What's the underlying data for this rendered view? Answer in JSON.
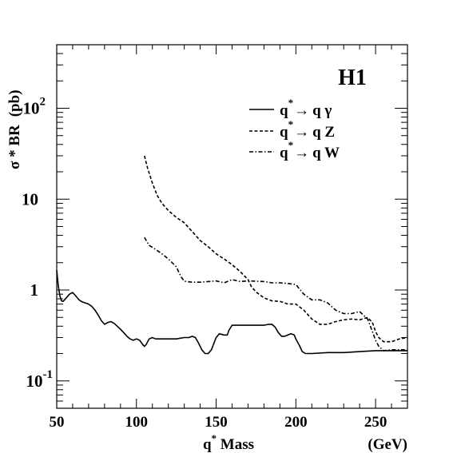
{
  "chart_data": {
    "type": "line",
    "experiment_label": "H1",
    "xlabel": {
      "prefix": "q",
      "sup": "*",
      "rest": " Mass"
    },
    "xunit": "(GeV)",
    "ylabel": {
      "main": "σ * BR",
      "unit": "(pb)"
    },
    "xlim": [
      50,
      270
    ],
    "ylim": [
      0.05,
      500
    ],
    "yscale": "log",
    "x_ticks": [
      {
        "value": 50,
        "label": "50"
      },
      {
        "value": 100,
        "label": "100"
      },
      {
        "value": 150,
        "label": "150"
      },
      {
        "value": 200,
        "label": "200"
      },
      {
        "value": 250,
        "label": "250"
      }
    ],
    "y_ticks": [
      {
        "value": 0.1,
        "base": "10",
        "exp": "-1"
      },
      {
        "value": 1,
        "base": "1",
        "exp": ""
      },
      {
        "value": 10,
        "base": "10",
        "exp": ""
      },
      {
        "value": 100,
        "base": "10",
        "exp": "2"
      }
    ],
    "legend_position": "top-right",
    "series": [
      {
        "name": "q* → q γ",
        "legend": {
          "q": "q",
          "sup": "*",
          "arrow": "→",
          "rest": "q γ"
        },
        "style": "solid",
        "x": [
          50,
          51,
          52,
          53,
          54,
          56,
          58,
          60,
          62,
          64,
          66,
          68,
          70,
          72,
          74,
          76,
          78,
          80,
          82,
          84,
          86,
          88,
          90,
          92,
          94,
          96,
          98,
          100,
          102,
          104,
          105,
          106,
          108,
          110,
          112,
          115,
          118,
          120,
          125,
          130,
          133,
          135,
          137,
          139,
          141,
          143,
          145,
          147,
          150,
          152,
          155,
          157,
          158,
          160,
          163,
          166,
          170,
          175,
          180,
          183,
          185,
          187,
          189,
          191,
          193,
          195,
          197,
          199,
          200,
          202,
          204,
          206,
          210,
          220,
          230,
          240,
          250,
          260,
          270
        ],
        "y": [
          1.65,
          1.1,
          0.86,
          0.76,
          0.75,
          0.82,
          0.9,
          0.94,
          0.86,
          0.78,
          0.74,
          0.72,
          0.7,
          0.66,
          0.6,
          0.53,
          0.46,
          0.42,
          0.44,
          0.45,
          0.43,
          0.4,
          0.37,
          0.34,
          0.31,
          0.29,
          0.28,
          0.29,
          0.28,
          0.25,
          0.24,
          0.25,
          0.29,
          0.3,
          0.29,
          0.29,
          0.29,
          0.29,
          0.29,
          0.3,
          0.3,
          0.31,
          0.3,
          0.26,
          0.22,
          0.2,
          0.2,
          0.22,
          0.3,
          0.33,
          0.32,
          0.32,
          0.36,
          0.41,
          0.41,
          0.41,
          0.41,
          0.41,
          0.41,
          0.42,
          0.42,
          0.39,
          0.34,
          0.31,
          0.31,
          0.32,
          0.33,
          0.32,
          0.29,
          0.25,
          0.21,
          0.2,
          0.2,
          0.205,
          0.205,
          0.21,
          0.215,
          0.215,
          0.215
        ]
      },
      {
        "name": "q* → q Z",
        "legend": {
          "q": "q",
          "sup": "*",
          "arrow": "→",
          "rest": "q Z"
        },
        "style": "dashed",
        "x": [
          105,
          107,
          110,
          113,
          116,
          120,
          125,
          130,
          133,
          136,
          140,
          145,
          150,
          155,
          160,
          165,
          170,
          172,
          175,
          180,
          185,
          190,
          195,
          200,
          205,
          210,
          215,
          220,
          225,
          230,
          235,
          240,
          245,
          248,
          250,
          252,
          255,
          260,
          265,
          270
        ],
        "y": [
          30,
          22,
          15,
          11,
          9,
          7.5,
          6.3,
          5.5,
          4.8,
          4.2,
          3.5,
          3,
          2.5,
          2.2,
          1.9,
          1.6,
          1.3,
          1.1,
          0.95,
          0.82,
          0.76,
          0.75,
          0.7,
          0.7,
          0.6,
          0.48,
          0.42,
          0.42,
          0.45,
          0.47,
          0.48,
          0.47,
          0.5,
          0.44,
          0.35,
          0.3,
          0.27,
          0.27,
          0.29,
          0.3
        ]
      },
      {
        "name": "q* → q W",
        "legend": {
          "q": "q",
          "sup": "*",
          "arrow": "→",
          "rest": "q W"
        },
        "style": "dashdot",
        "x": [
          105,
          108,
          112,
          116,
          120,
          125,
          128,
          130,
          135,
          140,
          145,
          150,
          155,
          160,
          165,
          170,
          175,
          180,
          185,
          190,
          195,
          200,
          205,
          210,
          215,
          220,
          225,
          230,
          235,
          240,
          245,
          248,
          250,
          252,
          255,
          260,
          265,
          270
        ],
        "y": [
          3.8,
          3.1,
          2.8,
          2.5,
          2.2,
          1.8,
          1.4,
          1.25,
          1.22,
          1.22,
          1.24,
          1.26,
          1.2,
          1.3,
          1.24,
          1.26,
          1.25,
          1.24,
          1.2,
          1.2,
          1.18,
          1.15,
          0.9,
          0.78,
          0.78,
          0.72,
          0.6,
          0.55,
          0.55,
          0.58,
          0.48,
          0.35,
          0.28,
          0.24,
          0.215,
          0.22,
          0.22,
          0.22
        ]
      }
    ]
  }
}
